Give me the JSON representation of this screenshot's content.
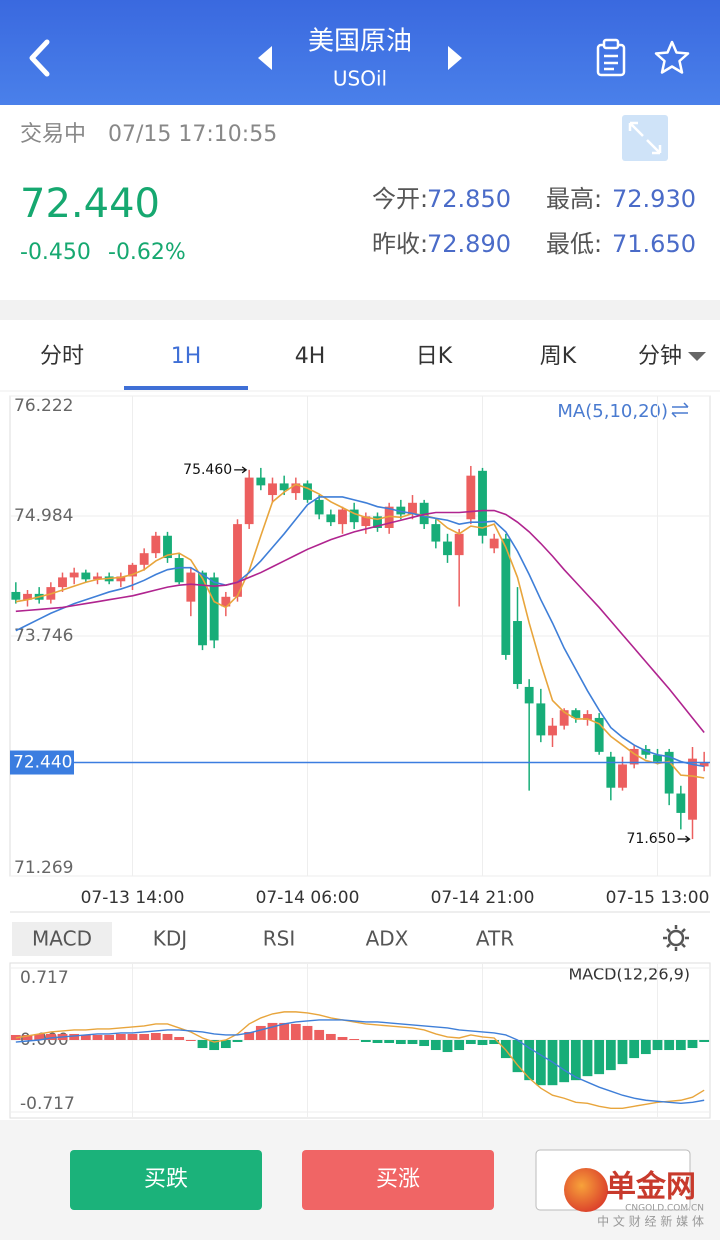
{
  "header": {
    "title": "美国原油",
    "subtitle": "USOil"
  },
  "status": {
    "state": "交易中",
    "time": "07/15 17:10:55"
  },
  "quote": {
    "price": "72.440",
    "change": "-0.450",
    "change_pct": "-0.62%",
    "stats": [
      {
        "label": "今开:",
        "value": "72.850"
      },
      {
        "label": "最高:",
        "value": "72.930"
      },
      {
        "label": "昨收:",
        "value": "72.890"
      },
      {
        "label": "最低:",
        "value": "71.650"
      }
    ]
  },
  "periods": [
    "分时",
    "1H",
    "4H",
    "日K",
    "周K",
    "分钟"
  ],
  "indicators": [
    "MACD",
    "KDJ",
    "RSI",
    "ADX",
    "ATR"
  ],
  "buttons": [
    "买跌",
    "买涨"
  ],
  "watermark": {
    "brand": "单金网",
    "domain": "CNGOLD.COM.CN",
    "slogan": "中 文 财 经 新 媒 体"
  },
  "chart_data": [
    {
      "type": "candlestick",
      "indicator_label": "MA(5,10,20)",
      "categories": [
        null,
        null,
        null,
        null,
        null,
        null,
        null,
        null,
        null,
        null,
        "07-13 14:00",
        null,
        null,
        null,
        null,
        null,
        null,
        null,
        null,
        null,
        null,
        null,
        null,
        null,
        null,
        "07-14 06:00",
        null,
        null,
        null,
        null,
        null,
        null,
        null,
        null,
        null,
        null,
        null,
        null,
        null,
        null,
        "07-14 21:00",
        null,
        null,
        null,
        null,
        null,
        null,
        null,
        null,
        null,
        null,
        null,
        null,
        null,
        null,
        "07-15 13:00",
        null,
        null,
        null,
        null
      ],
      "open": [
        74.2,
        74.12,
        74.18,
        74.12,
        74.25,
        74.35,
        74.4,
        74.33,
        74.36,
        74.31,
        74.36,
        74.48,
        74.6,
        74.78,
        74.55,
        74.1,
        74.4,
        74.35,
        74.05,
        74.15,
        74.9,
        75.38,
        75.2,
        75.32,
        75.22,
        75.32,
        75.15,
        75.0,
        74.9,
        75.05,
        74.88,
        74.98,
        74.86,
        75.08,
        75.0,
        75.12,
        74.9,
        74.72,
        74.58,
        74.95,
        75.45,
        74.65,
        74.75,
        73.9,
        73.22,
        73.05,
        72.72,
        72.82,
        72.98,
        72.88,
        72.9,
        72.5,
        72.18,
        72.42,
        72.58,
        72.52,
        72.55,
        72.12,
        71.85,
        72.4
      ],
      "high": [
        74.3,
        74.22,
        74.25,
        74.3,
        74.4,
        74.45,
        74.43,
        74.4,
        74.4,
        74.4,
        74.5,
        74.65,
        74.82,
        74.82,
        74.6,
        74.45,
        74.42,
        74.4,
        74.2,
        74.95,
        75.46,
        75.48,
        75.38,
        75.4,
        75.38,
        75.35,
        75.2,
        75.05,
        75.08,
        75.12,
        75.02,
        75.02,
        75.12,
        75.15,
        75.2,
        75.15,
        74.95,
        74.8,
        74.85,
        75.5,
        75.48,
        74.8,
        74.8,
        74.25,
        73.3,
        73.2,
        72.9,
        73.0,
        73.0,
        72.98,
        72.95,
        72.55,
        72.5,
        72.62,
        72.62,
        72.58,
        72.58,
        72.2,
        72.6,
        72.55
      ],
      "low": [
        74.08,
        74.05,
        74.08,
        74.08,
        74.2,
        74.28,
        74.3,
        74.28,
        74.28,
        74.25,
        74.22,
        74.42,
        74.55,
        74.5,
        74.28,
        73.95,
        73.6,
        73.62,
        73.95,
        74.1,
        74.85,
        75.25,
        75.12,
        75.2,
        75.15,
        75.12,
        74.95,
        74.88,
        74.8,
        74.85,
        74.8,
        74.82,
        74.8,
        74.95,
        74.95,
        74.85,
        74.65,
        74.5,
        74.05,
        74.9,
        74.7,
        74.6,
        73.5,
        73.2,
        72.15,
        72.65,
        72.6,
        72.78,
        72.85,
        72.82,
        72.52,
        72.05,
        72.15,
        72.38,
        72.48,
        72.42,
        72.0,
        71.75,
        71.65,
        72.35
      ],
      "close": [
        74.12,
        74.18,
        74.12,
        74.25,
        74.35,
        74.4,
        74.33,
        74.36,
        74.31,
        74.36,
        74.48,
        74.6,
        74.78,
        74.55,
        74.3,
        74.4,
        73.65,
        73.7,
        74.15,
        74.9,
        75.38,
        75.3,
        75.32,
        75.25,
        75.32,
        75.15,
        75.0,
        74.92,
        75.05,
        74.92,
        74.98,
        74.86,
        75.08,
        75.0,
        75.12,
        74.9,
        74.72,
        74.58,
        74.8,
        75.4,
        74.78,
        74.75,
        73.55,
        73.25,
        73.05,
        72.72,
        72.82,
        72.98,
        72.9,
        72.94,
        72.55,
        72.18,
        72.42,
        72.58,
        72.52,
        72.45,
        72.12,
        71.92,
        72.48,
        72.44
      ],
      "up_color": "#ec5f5f",
      "down_color": "#17ad78",
      "series": [
        {
          "color": "#e8a53c",
          "values": [
            74.1,
            74.12,
            74.15,
            74.18,
            74.22,
            74.26,
            74.3,
            74.33,
            74.34,
            74.35,
            74.38,
            74.43,
            74.52,
            74.58,
            74.6,
            74.53,
            74.34,
            74.1,
            74.04,
            74.16,
            74.42,
            74.78,
            75.13,
            75.23,
            75.31,
            75.27,
            75.21,
            75.13,
            75.07,
            75.01,
            74.97,
            74.95,
            74.98,
            74.97,
            75.01,
            74.99,
            74.96,
            74.86,
            74.8,
            74.88,
            74.86,
            74.9,
            74.66,
            74.35,
            73.88,
            73.46,
            73.08,
            72.96,
            72.89,
            72.89,
            72.84,
            72.71,
            72.62,
            72.53,
            72.46,
            72.43,
            72.45,
            72.31,
            72.3,
            72.28
          ]
        },
        {
          "color": "#3f7fd8",
          "values": [
            73.8,
            73.86,
            73.92,
            73.98,
            74.03,
            74.08,
            74.12,
            74.16,
            74.2,
            74.23,
            74.27,
            74.32,
            74.38,
            74.43,
            74.45,
            74.45,
            74.38,
            74.3,
            74.27,
            74.3,
            74.4,
            74.52,
            74.66,
            74.8,
            74.95,
            75.1,
            75.18,
            75.18,
            75.18,
            75.15,
            75.12,
            75.08,
            75.06,
            75.03,
            75.01,
            74.98,
            74.96,
            74.94,
            74.9,
            74.92,
            74.92,
            74.93,
            74.82,
            74.62,
            74.38,
            74.12,
            73.88,
            73.62,
            73.4,
            73.18,
            72.98,
            72.8,
            72.7,
            72.62,
            72.56,
            72.52,
            72.5,
            72.45,
            72.42,
            72.4
          ]
        },
        {
          "color": "#b0248f",
          "values": [
            74.0,
            74.01,
            74.02,
            74.03,
            74.04,
            74.06,
            74.08,
            74.1,
            74.12,
            74.14,
            74.16,
            74.19,
            74.22,
            74.25,
            74.27,
            74.28,
            74.27,
            74.26,
            74.27,
            74.3,
            74.35,
            74.4,
            74.46,
            74.52,
            74.58,
            74.64,
            74.69,
            74.74,
            74.78,
            74.82,
            74.85,
            74.88,
            74.91,
            74.94,
            74.97,
            75.0,
            75.02,
            75.02,
            75.02,
            75.03,
            75.04,
            75.04,
            75.0,
            74.92,
            74.82,
            74.7,
            74.57,
            74.43,
            74.3,
            74.17,
            74.04,
            73.9,
            73.76,
            73.62,
            73.48,
            73.34,
            73.2,
            73.05,
            72.9,
            72.75
          ]
        }
      ],
      "ylim": [
        71.269,
        76.222
      ],
      "yticks": [
        76.222,
        74.984,
        73.746,
        71.269
      ],
      "grid": true,
      "last_price": {
        "value": 72.44,
        "label": "72.440",
        "color": "#3b7de0"
      },
      "annotations": [
        {
          "value": 75.46,
          "label": "75.460"
        },
        {
          "value": 71.65,
          "label": "71.650"
        }
      ]
    },
    {
      "type": "macd",
      "indicator_label": "MACD(12,26,9)",
      "histogram": [
        0.05,
        0.05,
        0.06,
        0.06,
        0.06,
        0.06,
        0.05,
        0.05,
        0.05,
        0.06,
        0.06,
        0.06,
        0.07,
        0.06,
        0.03,
        0.0,
        -0.08,
        -0.1,
        -0.08,
        -0.02,
        0.08,
        0.14,
        0.17,
        0.17,
        0.16,
        0.14,
        0.1,
        0.06,
        0.03,
        0.01,
        -0.02,
        -0.03,
        -0.03,
        -0.04,
        -0.04,
        -0.06,
        -0.1,
        -0.12,
        -0.1,
        -0.04,
        -0.05,
        -0.04,
        -0.18,
        -0.32,
        -0.4,
        -0.45,
        -0.45,
        -0.42,
        -0.4,
        -0.36,
        -0.34,
        -0.3,
        -0.24,
        -0.18,
        -0.14,
        -0.1,
        -0.1,
        -0.1,
        -0.08,
        -0.02
      ],
      "up_color": "#ec5f5f",
      "down_color": "#17ad78",
      "series": [
        {
          "color": "#e8a53c",
          "values": [
            0.02,
            0.04,
            0.06,
            0.08,
            0.09,
            0.1,
            0.1,
            0.11,
            0.11,
            0.12,
            0.13,
            0.14,
            0.16,
            0.16,
            0.12,
            0.08,
            0.02,
            -0.02,
            0.0,
            0.06,
            0.16,
            0.22,
            0.26,
            0.28,
            0.28,
            0.27,
            0.25,
            0.22,
            0.2,
            0.18,
            0.16,
            0.15,
            0.14,
            0.13,
            0.12,
            0.1,
            0.06,
            0.03,
            0.02,
            0.05,
            0.03,
            0.02,
            -0.1,
            -0.25,
            -0.38,
            -0.48,
            -0.55,
            -0.58,
            -0.62,
            -0.63,
            -0.66,
            -0.68,
            -0.68,
            -0.66,
            -0.64,
            -0.62,
            -0.61,
            -0.6,
            -0.57,
            -0.5
          ]
        },
        {
          "color": "#3f7fd8",
          "values": [
            -0.02,
            -0.01,
            0.0,
            0.02,
            0.03,
            0.04,
            0.05,
            0.06,
            0.06,
            0.07,
            0.07,
            0.08,
            0.09,
            0.1,
            0.1,
            0.09,
            0.08,
            0.06,
            0.05,
            0.05,
            0.07,
            0.1,
            0.13,
            0.16,
            0.18,
            0.19,
            0.2,
            0.2,
            0.2,
            0.19,
            0.18,
            0.18,
            0.17,
            0.16,
            0.15,
            0.14,
            0.13,
            0.12,
            0.1,
            0.09,
            0.08,
            0.07,
            0.05,
            0.0,
            -0.08,
            -0.15,
            -0.22,
            -0.3,
            -0.37,
            -0.42,
            -0.47,
            -0.51,
            -0.55,
            -0.58,
            -0.6,
            -0.61,
            -0.62,
            -0.63,
            -0.62,
            -0.6
          ]
        }
      ],
      "ylim": [
        -0.717,
        0.717
      ],
      "yticks": [
        0.717,
        {
          "value": 0,
          "label": "0.000"
        },
        -0.717
      ],
      "grid": true
    }
  ]
}
